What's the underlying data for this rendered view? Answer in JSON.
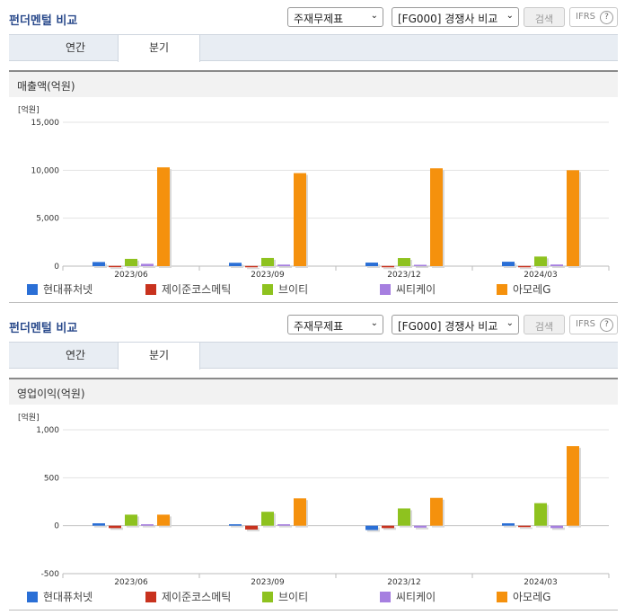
{
  "panels": [
    {
      "title": "펀더멘털 비교",
      "select_statement": "주재무제표",
      "select_compare": "[FG000] 경쟁사 비교",
      "search_label": "검색",
      "ifrs_label": "IFRS",
      "ifrs_help": "?",
      "tabs": [
        "연간",
        "분기"
      ],
      "active_tab": 1,
      "section_title": "매출액(억원)"
    },
    {
      "title": "펀더멘털 비교",
      "select_statement": "주재무제표",
      "select_compare": "[FG000] 경쟁사 비교",
      "search_label": "검색",
      "ifrs_label": "IFRS",
      "ifrs_help": "?",
      "tabs": [
        "연간",
        "분기"
      ],
      "active_tab": 1,
      "section_title": "영업이익(억원)"
    }
  ],
  "chart_data": [
    {
      "type": "bar",
      "unit_label": "[억원]",
      "categories": [
        "2023/06",
        "2023/09",
        "2023/12",
        "2024/03"
      ],
      "ylim": [
        0,
        15000
      ],
      "yticks": [
        0,
        5000,
        10000,
        15000
      ],
      "ytick_labels": [
        "0",
        "5,000",
        "10,000",
        "15,000"
      ],
      "grid": true,
      "legend_position": "bottom",
      "series": [
        {
          "name": "현대퓨처넷",
          "color": "#2a6fd6",
          "values": [
            430,
            350,
            370,
            460
          ]
        },
        {
          "name": "제이준코스메틱",
          "color": "#c8321e",
          "values": [
            30,
            20,
            20,
            20
          ]
        },
        {
          "name": "브이티",
          "color": "#8ec21f",
          "values": [
            760,
            850,
            840,
            1000
          ]
        },
        {
          "name": "씨티케이",
          "color": "#a67fe0",
          "values": [
            240,
            160,
            140,
            170
          ]
        },
        {
          "name": "아모레G",
          "color": "#f5910d",
          "values": [
            10300,
            9700,
            10200,
            10000
          ]
        }
      ]
    },
    {
      "type": "bar",
      "unit_label": "[억원]",
      "categories": [
        "2023/06",
        "2023/09",
        "2023/12",
        "2024/03"
      ],
      "ylim": [
        -500,
        1000
      ],
      "yticks": [
        -500,
        0,
        500,
        1000
      ],
      "ytick_labels": [
        "-500",
        "0",
        "500",
        "1,000"
      ],
      "grid": true,
      "legend_position": "bottom",
      "series": [
        {
          "name": "현대퓨처넷",
          "color": "#2a6fd6",
          "values": [
            25,
            15,
            -45,
            25
          ]
        },
        {
          "name": "제이준코스메틱",
          "color": "#c8321e",
          "values": [
            -25,
            -40,
            -25,
            -15
          ]
        },
        {
          "name": "브이티",
          "color": "#8ec21f",
          "values": [
            115,
            145,
            180,
            235
          ]
        },
        {
          "name": "씨티케이",
          "color": "#a67fe0",
          "values": [
            15,
            15,
            -20,
            -25
          ]
        },
        {
          "name": "아모레G",
          "color": "#f5910d",
          "values": [
            115,
            285,
            290,
            830
          ]
        }
      ]
    }
  ]
}
